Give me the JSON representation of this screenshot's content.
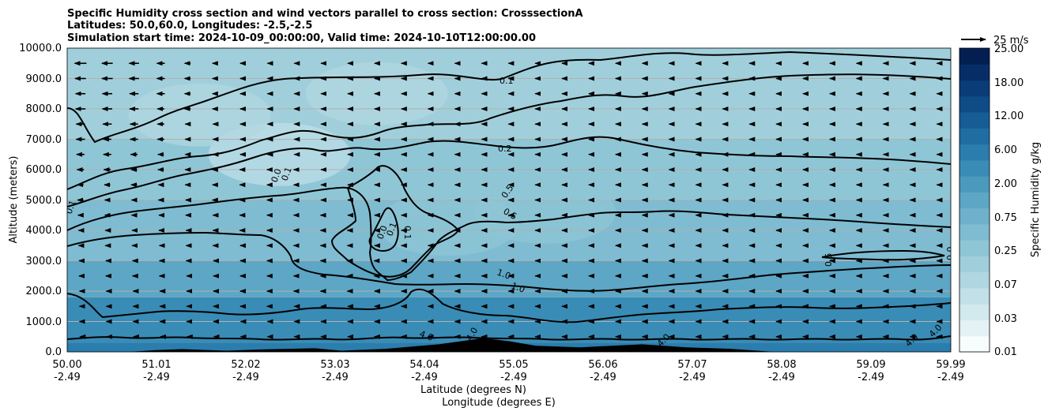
{
  "chart_data": {
    "type": "contour",
    "title_lines": [
      "Specific Humidity cross section and wind vectors parallel to cross section: CrosssectionA",
      "Latitudes: 50.0,60.0, Longitudes: -2.5,-2.5",
      "Simulation start time: 2024-10-09_00:00:00, Valid time: 2024-10-10T12:00:00.00"
    ],
    "ylabel": "Altitude (meters)",
    "xlabel_lines": [
      "Latitude (degrees N)",
      "Longitude (degrees E)"
    ],
    "ylim": [
      0,
      10000
    ],
    "y_ticks": [
      "0.0",
      "1000.0",
      "2000.0",
      "3000.0",
      "4000.0",
      "5000.0",
      "6000.0",
      "7000.0",
      "8000.0",
      "9000.0",
      "10000.0"
    ],
    "x_ticks": [
      {
        "lat": "50.00",
        "lon": "-2.49"
      },
      {
        "lat": "51.01",
        "lon": "-2.49"
      },
      {
        "lat": "52.02",
        "lon": "-2.49"
      },
      {
        "lat": "53.03",
        "lon": "-2.49"
      },
      {
        "lat": "54.04",
        "lon": "-2.49"
      },
      {
        "lat": "55.05",
        "lon": "-2.49"
      },
      {
        "lat": "56.06",
        "lon": "-2.49"
      },
      {
        "lat": "57.07",
        "lon": "-2.49"
      },
      {
        "lat": "58.08",
        "lon": "-2.49"
      },
      {
        "lat": "59.09",
        "lon": "-2.49"
      },
      {
        "lat": "59.99",
        "lon": "-2.49"
      }
    ],
    "xlim": [
      50.0,
      59.99
    ],
    "grid": "horizontal",
    "colorbar": {
      "label": "Specific Humidity g/kg",
      "tick_labels": [
        "0.01",
        "0.03",
        "0.07",
        "0.25",
        "0.75",
        "2.00",
        "6.00",
        "12.00",
        "18.00",
        "25.00"
      ],
      "levels": [
        "0.01",
        "0.02",
        "0.03",
        "0.05",
        "0.07",
        "0.1",
        "0.25",
        "0.5",
        "0.75",
        "1.0",
        "2.00",
        "4.0",
        "6.00",
        "8.0",
        "12.00",
        "15.0",
        "18.00",
        "20.0",
        "25.00"
      ],
      "colors": [
        "#f7fcfd",
        "#e5f2f5",
        "#d2e9ee",
        "#c1e0e8",
        "#b0d7e1",
        "#a0cfdb",
        "#8fc6d6",
        "#7fbcd1",
        "#6fb1cb",
        "#5da6c5",
        "#4b99bd",
        "#398cb5",
        "#2a7dac",
        "#1f6da2",
        "#165d96",
        "#0f4c87",
        "#0a3c77",
        "#062d66",
        "#031f52"
      ]
    },
    "field_bands_mean_g_per_kg": [
      {
        "band": "0-300 m",
        "value": 6.0
      },
      {
        "band": "300-1800 m",
        "value": 4.0
      },
      {
        "band": "1800-3000 m",
        "value": 1.5
      },
      {
        "band": "3000-5000 m",
        "value": 0.6
      },
      {
        "band": "5000-7000 m",
        "value": 0.3
      },
      {
        "band": "7000-10000 m",
        "value": 0.1
      }
    ],
    "contour_labels": [
      "0.1",
      "0.1",
      "0.0",
      "0.1",
      "0.2",
      "0.5",
      "0.5",
      "0.0",
      "0.1",
      "0.1",
      "1.0",
      "1.0",
      "0.5",
      "0.0",
      "4.0",
      "4.0",
      "4.0",
      "4.0",
      "4.0"
    ],
    "wind_key": {
      "label": "25 m/s",
      "speed": 25
    },
    "wind_rows_m_per_s": [
      {
        "alt": 9500,
        "speeds": [
          -12,
          -11,
          -10,
          -8,
          -6,
          -4,
          -2,
          -1,
          -1,
          -1,
          -1,
          -1,
          -1,
          -1,
          -1,
          -1,
          -1,
          -1,
          -1,
          -1,
          -1,
          -1,
          -1,
          -1,
          -1,
          -1,
          -1,
          -1,
          -1,
          -1,
          -1,
          -1,
          -1
        ]
      },
      {
        "alt": 9000,
        "speeds": [
          -11,
          -11,
          -10,
          -8,
          -6,
          -4,
          -2,
          -1,
          -1,
          -1,
          -1,
          -1,
          -1,
          -1,
          -1,
          -1,
          -1,
          -1,
          -1,
          -1,
          -1,
          -1,
          -1,
          -1,
          -1,
          -1,
          -1,
          -1,
          -1,
          -1,
          -1,
          -1,
          -1
        ]
      },
      {
        "alt": 8500,
        "speeds": [
          -10,
          -10,
          -9,
          -8,
          -6,
          -4,
          -2,
          -1,
          -1,
          -1,
          -1,
          -1,
          -1,
          -1,
          -1,
          -1,
          -1,
          -1,
          -1,
          -1,
          -1,
          -1,
          -1,
          -1,
          -1,
          -1,
          -1,
          -1,
          -1,
          -1,
          -1,
          -1,
          -1
        ]
      },
      {
        "alt": 8000,
        "speeds": [
          -10,
          -10,
          -9,
          -7,
          -6,
          -4,
          -2,
          -1,
          -1,
          -1,
          -1,
          -1,
          -1,
          -1,
          -1,
          -1,
          -1,
          -1,
          -1,
          -1,
          -1,
          -1,
          -1,
          -1,
          -1,
          -1,
          -1,
          -1,
          -1,
          -1,
          -1,
          -1,
          -1
        ]
      },
      {
        "alt": 7500,
        "speeds": [
          -9,
          -9,
          -8,
          -7,
          -5,
          -3,
          -2,
          -1,
          -1,
          -1,
          -1,
          -1,
          -1,
          -1,
          -1,
          -1,
          -1,
          -1,
          -1,
          -1,
          -1,
          -1,
          -1,
          -1,
          -1,
          -1,
          -1,
          -1,
          -1,
          -1,
          -1,
          -1,
          -1
        ]
      },
      {
        "alt": 7000,
        "speeds": [
          -9,
          -8,
          -8,
          -7,
          -5,
          -3,
          -2,
          -1,
          -1,
          -1,
          -1,
          -1,
          -1,
          -1,
          -1,
          -1,
          -1,
          -1,
          -1,
          -1,
          -1,
          -1,
          -1,
          -1,
          -1,
          -1,
          -1,
          -1,
          -1,
          -1,
          -1,
          -1,
          -1
        ]
      },
      {
        "alt": 6500,
        "speeds": [
          -8,
          -8,
          -7,
          -6,
          -5,
          -3,
          -2,
          -1,
          -1,
          -1,
          -1,
          -1,
          -1,
          -1,
          -1,
          -1,
          -1,
          -1,
          -1,
          -1,
          -1,
          -1,
          -1,
          -1,
          -1,
          -1,
          -1,
          -1,
          -1,
          -1,
          -1,
          -1,
          -1
        ]
      },
      {
        "alt": 6000,
        "speeds": [
          -7,
          -7,
          -6,
          -6,
          -5,
          -4,
          -3,
          -2,
          -2,
          -1,
          -1,
          -1,
          -1,
          -1,
          -1,
          -1,
          -1,
          -1,
          -1,
          -1,
          -1,
          -1,
          -1,
          -1,
          -1,
          -1,
          -1,
          -1,
          -1,
          -1,
          -1,
          -1,
          -1
        ]
      },
      {
        "alt": 5500,
        "speeds": [
          -6,
          -6,
          -6,
          -5,
          -5,
          -4,
          -3,
          -2,
          -2,
          -1,
          -1,
          -1,
          -1,
          -1,
          -1,
          -1,
          -1,
          -1,
          -1,
          -1,
          -1,
          -1,
          -1,
          -1,
          -1,
          -1,
          -1,
          -1,
          -1,
          -1,
          -1,
          -1,
          -1
        ]
      },
      {
        "alt": 5000,
        "speeds": [
          -6,
          -5,
          -5,
          -5,
          -4,
          -4,
          -3,
          -2,
          -2,
          -1,
          -1,
          -1,
          -1,
          -1,
          -1,
          -1,
          -1,
          -1,
          -1,
          -1,
          -1,
          -1,
          -1,
          -1,
          -1,
          -1,
          -1,
          -1,
          -1,
          -1,
          -1,
          -1,
          -1
        ]
      },
      {
        "alt": 4500,
        "speeds": [
          -5,
          -5,
          -5,
          -4,
          -4,
          -3,
          -3,
          -2,
          -2,
          -2,
          -1,
          -1,
          -1,
          -1,
          -1,
          -1,
          -1,
          -1,
          -1,
          -1,
          -1,
          -1,
          -1,
          -1,
          -1,
          -1,
          -1,
          -1,
          -1,
          -1,
          -1,
          -1,
          -1
        ]
      },
      {
        "alt": 4000,
        "speeds": [
          -4,
          -4,
          -4,
          -4,
          -3,
          -3,
          -3,
          -2,
          -2,
          -2,
          -2,
          -1,
          -1,
          -1,
          -1,
          -1,
          -1,
          -1,
          -1,
          -1,
          -1,
          -1,
          -1,
          -1,
          -1,
          -1,
          -1,
          -1,
          -1,
          -1,
          -1,
          -1,
          -1
        ]
      },
      {
        "alt": 3500,
        "speeds": [
          -4,
          -4,
          -4,
          -3,
          -3,
          -3,
          -2,
          -2,
          -2,
          -2,
          -2,
          -1,
          -1,
          -1,
          -1,
          -1,
          -1,
          -1,
          -1,
          -1,
          -1,
          -1,
          -1,
          -1,
          -1,
          -1,
          -1,
          -1,
          -1,
          -1,
          -1,
          -1,
          -1
        ]
      },
      {
        "alt": 3000,
        "speeds": [
          -3,
          -3,
          -3,
          -3,
          -3,
          -2,
          -2,
          -2,
          -2,
          -2,
          -2,
          -2,
          -1,
          -1,
          -1,
          -1,
          -1,
          -1,
          -1,
          -1,
          -1,
          -1,
          -1,
          -1,
          -1,
          -1,
          -1,
          -1,
          -1,
          -1,
          -1,
          -1,
          -1
        ]
      },
      {
        "alt": 2500,
        "speeds": [
          -3,
          -3,
          -3,
          -3,
          -2,
          -2,
          -2,
          -2,
          -2,
          -2,
          -2,
          -2,
          -1,
          -1,
          -1,
          -1,
          -1,
          -1,
          -1,
          -1,
          -1,
          -1,
          -1,
          -1,
          -1,
          -1,
          -1,
          -1,
          -1,
          -1,
          -1,
          -1,
          -1
        ]
      },
      {
        "alt": 2000,
        "speeds": [
          -2,
          -2,
          -2,
          -2,
          -2,
          -2,
          -2,
          -2,
          -2,
          -2,
          -2,
          -1,
          -1,
          -1,
          -1,
          -1,
          -1,
          -1,
          -1,
          -1,
          -1,
          -1,
          -1,
          -1,
          -1,
          -1,
          -1,
          -1,
          -1,
          -1,
          -1,
          -1,
          -1
        ]
      },
      {
        "alt": 1500,
        "speeds": [
          -2,
          -2,
          -2,
          -2,
          -2,
          -2,
          -2,
          -2,
          -1,
          -1,
          -1,
          -1,
          -1,
          -1,
          -1,
          -1,
          -1,
          -1,
          -1,
          -1,
          -1,
          -1,
          -1,
          -1,
          -1,
          -1,
          -1,
          -1,
          -1,
          -1,
          -1,
          -1,
          -1
        ]
      },
      {
        "alt": 1000,
        "speeds": [
          -2,
          -2,
          -2,
          -2,
          -2,
          -2,
          -1,
          -1,
          -1,
          -1,
          -1,
          -1,
          -1,
          -1,
          -1,
          -1,
          -1,
          -1,
          -1,
          -1,
          -1,
          -1,
          -1,
          -1,
          -1,
          -1,
          -1,
          -1,
          -1,
          -1,
          -1,
          -1,
          -1
        ]
      },
      {
        "alt": 500,
        "speeds": [
          -1,
          -1,
          -1,
          -1,
          -1,
          -1,
          -1,
          -1,
          -1,
          -1,
          -1,
          -1,
          -1,
          -1,
          -1,
          -1,
          -1,
          -1,
          -1,
          -1,
          -1,
          -1,
          -1,
          -1,
          -1,
          -1,
          -1,
          -1,
          -1,
          -1,
          -1,
          -1,
          -1
        ]
      }
    ],
    "terrain_m": [
      [
        50.0,
        0
      ],
      [
        50.7,
        0
      ],
      [
        51.0,
        60
      ],
      [
        51.3,
        90
      ],
      [
        51.8,
        40
      ],
      [
        52.2,
        80
      ],
      [
        52.8,
        120
      ],
      [
        53.1,
        40
      ],
      [
        53.6,
        100
      ],
      [
        54.2,
        250
      ],
      [
        54.7,
        450
      ],
      [
        55.0,
        350
      ],
      [
        55.3,
        200
      ],
      [
        55.8,
        150
      ],
      [
        56.5,
        250
      ],
      [
        57.0,
        150
      ],
      [
        57.5,
        100
      ],
      [
        58.0,
        0
      ],
      [
        59.99,
        0
      ]
    ]
  }
}
